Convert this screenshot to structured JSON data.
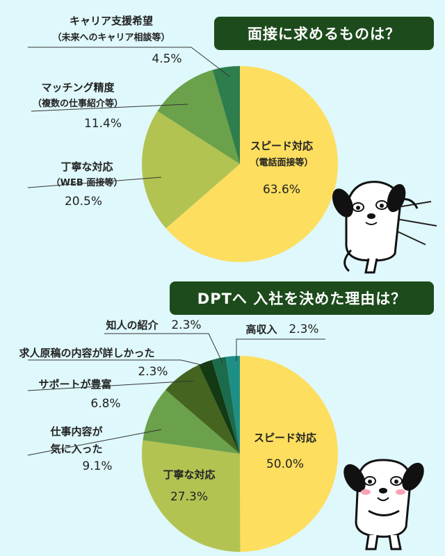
{
  "chart_data": [
    {
      "type": "pie",
      "title": "面接に求めるものは？",
      "slices": [
        {
          "label": "スピード対応",
          "sublabel": "（電話面接等）",
          "value": 63.6,
          "value_text": "63.6%",
          "color": "#fdde5f"
        },
        {
          "label": "丁寧な対応",
          "sublabel": "（WEB 面接等）",
          "value": 20.5,
          "value_text": "20.5%",
          "color": "#b2c352"
        },
        {
          "label": "マッチング精度",
          "sublabel": "（複数の仕事紹介等）",
          "value": 11.4,
          "value_text": "11.4%",
          "color": "#6ba14a"
        },
        {
          "label": "キャリア支援希望",
          "sublabel": "（未来へのキャリア相談等）",
          "value": 4.5,
          "value_text": "4.5%",
          "color": "#2e7d4c"
        }
      ]
    },
    {
      "type": "pie",
      "title": "DPTへ 入社を決めた理由は？",
      "slices": [
        {
          "label": "スピード対応",
          "value": 50.0,
          "value_text": "50.0%",
          "color": "#fdde5f"
        },
        {
          "label": "丁寧な対応",
          "value": 27.3,
          "value_text": "27.3%",
          "color": "#b2c352"
        },
        {
          "label": "仕事内容が気に入った",
          "value": 9.1,
          "value_text": "9.1%",
          "color": "#6ba14a"
        },
        {
          "label": "サポートが豊富",
          "value": 6.8,
          "value_text": "6.8%",
          "color": "#44641f"
        },
        {
          "label": "求人原稿の内容が詳しかった",
          "value": 2.3,
          "value_text": "2.3%",
          "color": "#133a13"
        },
        {
          "label": "知人の紹介",
          "value": 2.3,
          "value_text": "2.3%",
          "color": "#1d6b4d"
        },
        {
          "label": "高収入",
          "value": 2.3,
          "value_text": "2.3%",
          "color": "#1e8f86"
        }
      ]
    }
  ],
  "label_lines": {
    "c1": [
      {
        "l1": "スピード対応",
        "l2": "（電話面接等）",
        "v": "63.6%"
      },
      {
        "l1": "丁寧な対応",
        "l2": "（WEB 面接等）",
        "v": "20.5%"
      },
      {
        "l1": "マッチング精度",
        "l2": "（複数の仕事紹介等）",
        "v": "11.4%"
      },
      {
        "l1": "キャリア支援希望",
        "l2": "（未来へのキャリア相談等）",
        "v": "4.5%"
      }
    ],
    "c2": [
      {
        "l1": "スピード対応",
        "v": "50.0%"
      },
      {
        "l1": "丁寧な対応",
        "v": "27.3%"
      },
      {
        "l1": "仕事内容が",
        "l2": "気に入った",
        "v": "9.1%"
      },
      {
        "l1": "サポートが豊富",
        "v": "6.8%"
      },
      {
        "l1": "求人原稿の内容が詳しかった",
        "v": "2.3%"
      },
      {
        "l1": "知人の紹介",
        "v": "2.3%"
      },
      {
        "l1": "高収入",
        "v": "2.3%"
      }
    ]
  }
}
